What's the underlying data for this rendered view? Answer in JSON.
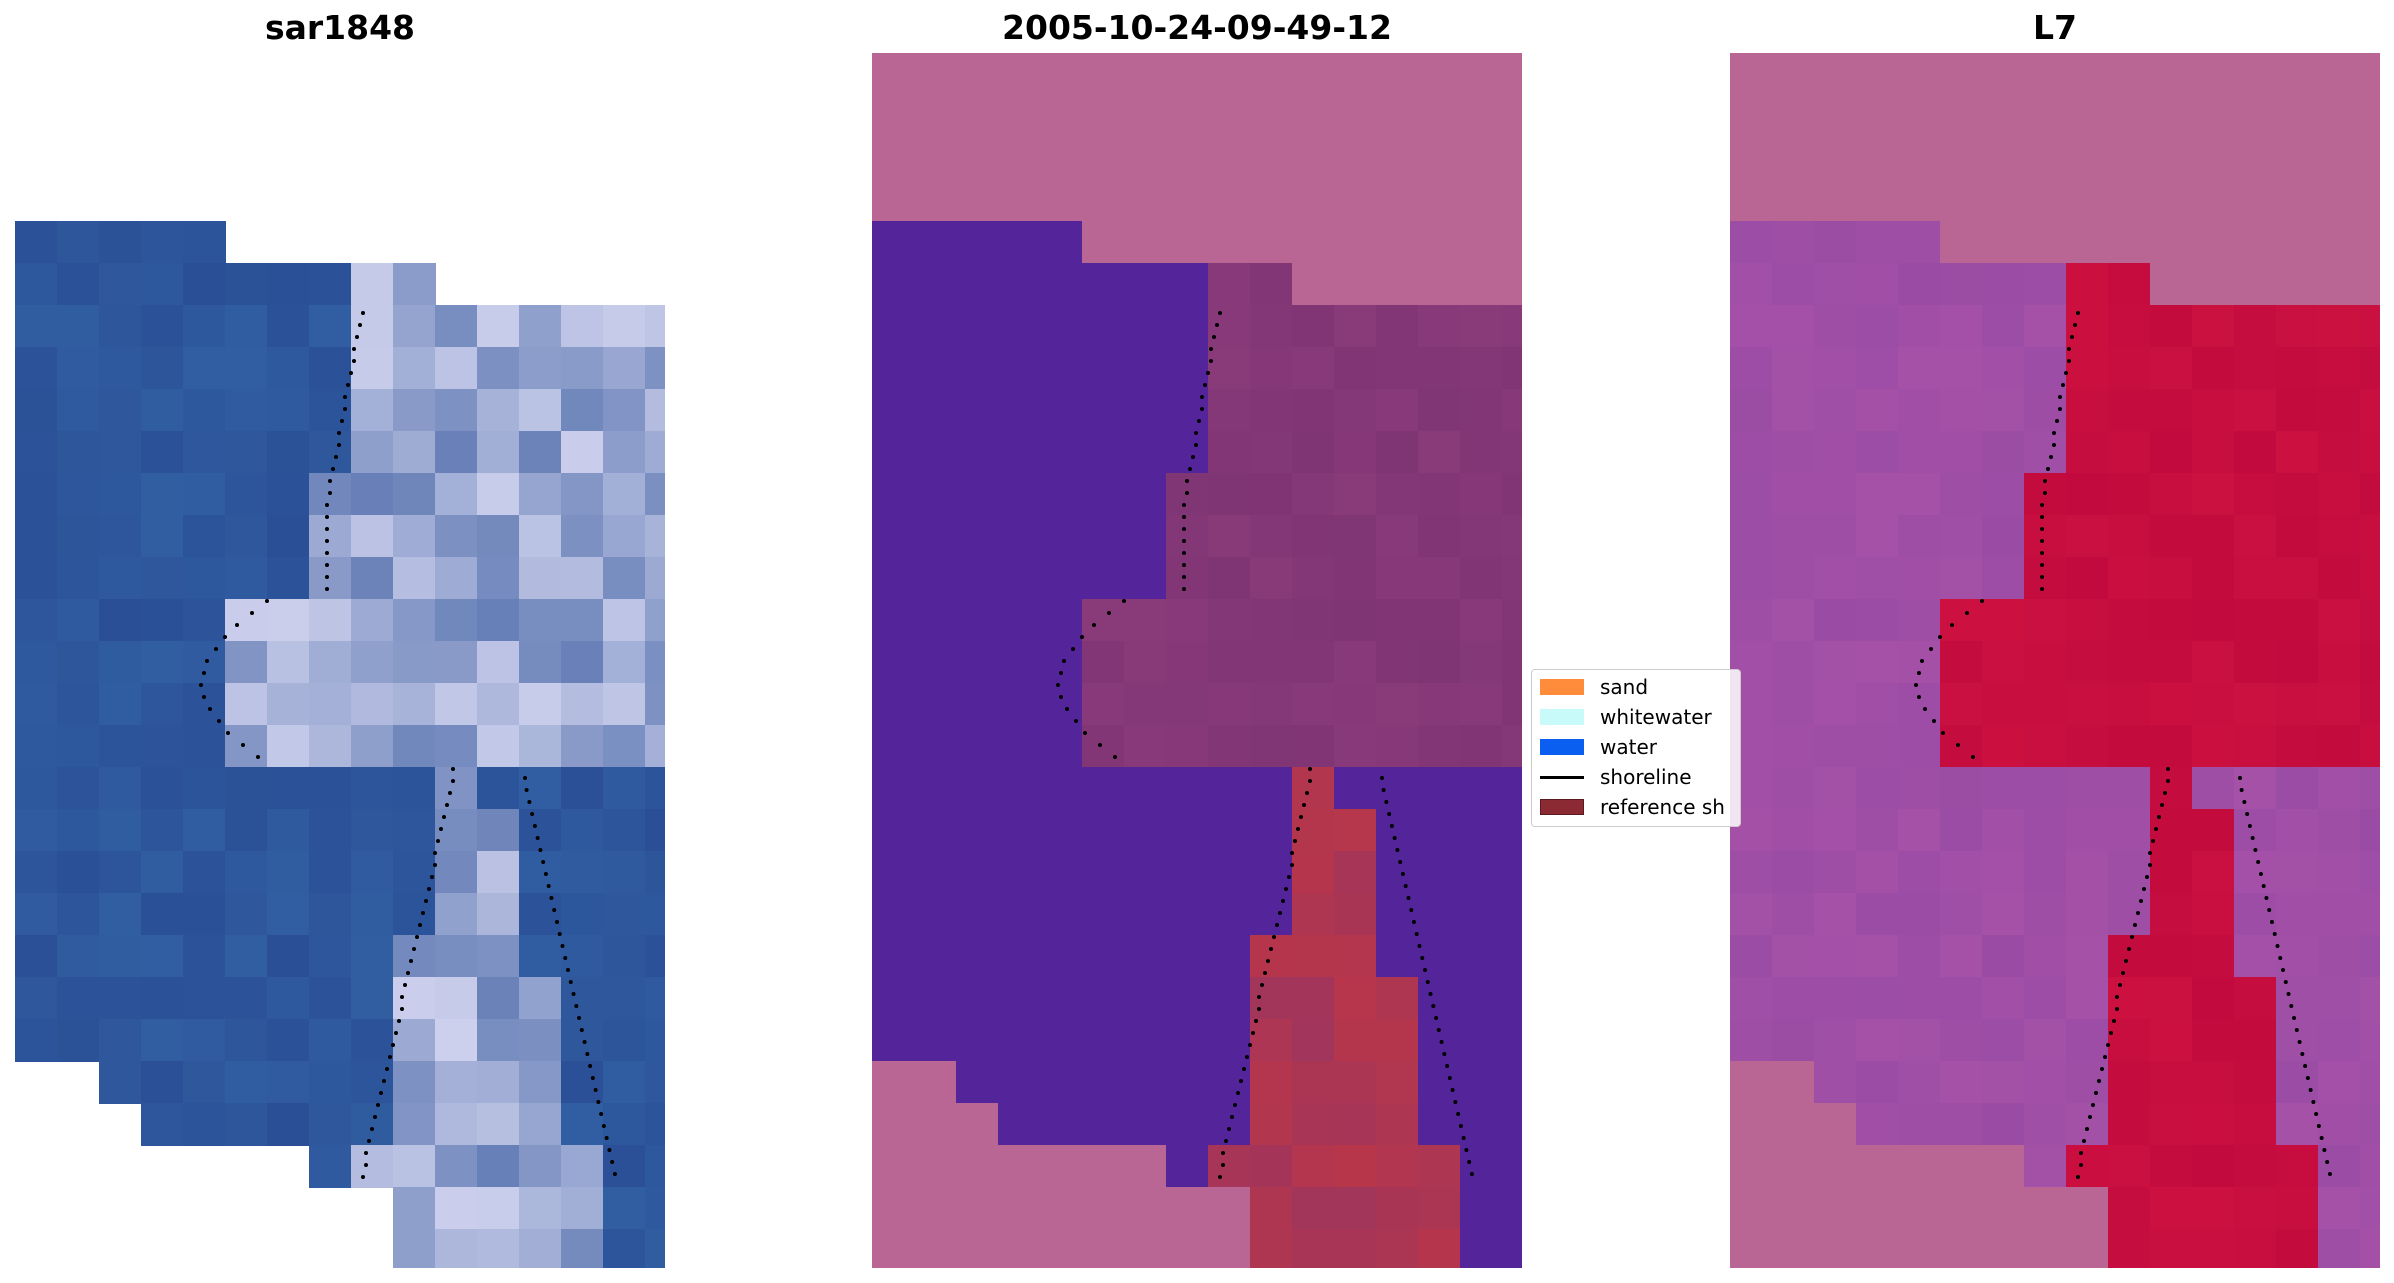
{
  "panels": [
    {
      "title": "sar1848",
      "view": "RGB satellite image"
    },
    {
      "title": "2005-10-24-09-49-12",
      "view": "classified image"
    },
    {
      "title": "L7",
      "view": "index image"
    }
  ],
  "legend": {
    "items": [
      {
        "label": "sand",
        "kind": "patch",
        "color": "#ff8c3b"
      },
      {
        "label": "whitewater",
        "kind": "patch",
        "color": "#c8fafa"
      },
      {
        "label": "water",
        "kind": "patch",
        "color": "#0a5ff0"
      },
      {
        "label": "shoreline",
        "kind": "line",
        "color": "#000000"
      },
      {
        "label": "reference sh",
        "kind": "patch",
        "color": "#8b2a33"
      }
    ]
  },
  "colors": {
    "masked": "#ba6695",
    "class_water": "#53249a",
    "class_sand": "#b8364a",
    "class_land": "#7f3474",
    "rgb_water": "#2a4f96",
    "rgb_light": "#d6d8f2",
    "idx_low": "#9a4ca4",
    "idx_high": "#c20a3e"
  }
}
